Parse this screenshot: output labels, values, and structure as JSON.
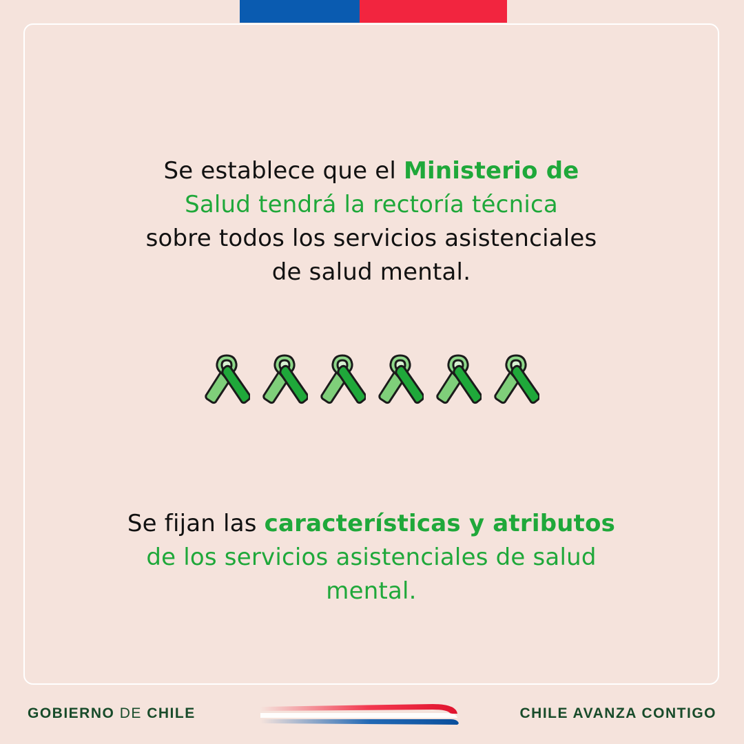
{
  "block1": {
    "line1_normal": "Se establece que el ",
    "line1_highlight": "Ministerio de",
    "line2_highlight": "Salud tendrá la rectoría técnica",
    "line3": "sobre todos los servicios asistenciales",
    "line4": "de salud mental."
  },
  "block2": {
    "line1_normal": "Se fijan las ",
    "line1_highlight": "características y atributos",
    "line2_highlight": "de los servicios asistenciales de salud",
    "line3_highlight": "mental."
  },
  "ribbons": {
    "count": 6,
    "icon": "green-awareness-ribbon-icon",
    "color": "#1fa83a"
  },
  "footer": {
    "left_part1": "GOBIERNO ",
    "left_part2": "DE",
    "left_part3": " CHILE",
    "right": "CHILE AVANZA CONTIGO"
  },
  "colors": {
    "background": "#f5e3dc",
    "highlight": "#1fa83a",
    "flag_blue": "#0a5bb0",
    "flag_red": "#f2253f",
    "footer_text": "#184b2a"
  }
}
